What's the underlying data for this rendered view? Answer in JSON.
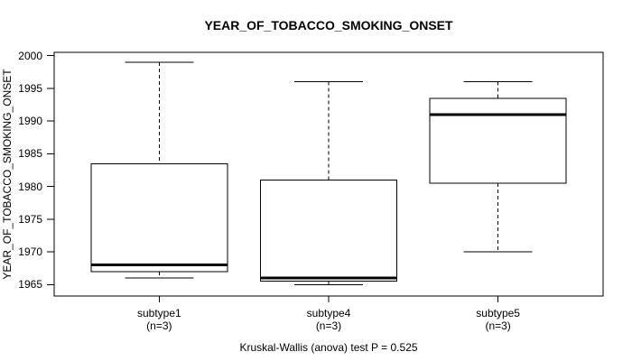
{
  "chart_data": {
    "type": "boxplot",
    "title": "YEAR_OF_TOBACCO_SMOKING_ONSET",
    "xlabel": "",
    "ylabel": "YEAR_OF_TOBACCO_SMOKING_ONSET",
    "annotation": "Kruskal-Wallis (anova) test P = 0.525",
    "ylim": [
      1963.25,
      2000.51
    ],
    "yticks": [
      1965,
      1970,
      1975,
      1980,
      1985,
      1990,
      1995,
      2000
    ],
    "grid": false,
    "legend": "none",
    "groups": [
      {
        "label": "subtype1",
        "n_label": "(n=3)",
        "values": [
          1966,
          1968,
          1999
        ],
        "stats": {
          "whisker_low": 1966,
          "q1": 1967,
          "median": 1968,
          "q3": 1983.5,
          "whisker_high": 1999
        }
      },
      {
        "label": "subtype4",
        "n_label": "(n=3)",
        "values": [
          1965,
          1966,
          1996
        ],
        "stats": {
          "whisker_low": 1965,
          "q1": 1965.5,
          "median": 1966,
          "q3": 1981,
          "whisker_high": 1996
        }
      },
      {
        "label": "subtype5",
        "n_label": "(n=3)",
        "values": [
          1970,
          1991,
          1996
        ],
        "stats": {
          "whisker_low": 1970,
          "q1": 1980.5,
          "median": 1991,
          "q3": 1993.5,
          "whisker_high": 1996
        }
      }
    ],
    "colors": {
      "line": "#000000",
      "box_fill": "#ffffff",
      "background": "#ffffff"
    }
  }
}
